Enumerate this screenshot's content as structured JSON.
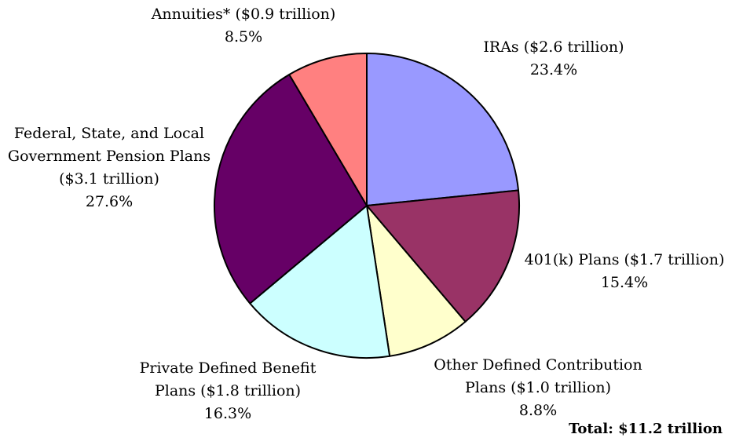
{
  "chart_data": {
    "type": "pie",
    "title": "",
    "total_label": "Total: $11.2 trillion",
    "start_angle_deg": 0,
    "slice_stroke": "#000000",
    "slices": [
      {
        "label": "IRAs ($2.6 trillion)",
        "percent_text": "23.4%",
        "value": 23.4,
        "color": "#9999ff",
        "lines": [
          "IRAs ($2.6 trillion)",
          "23.4%"
        ]
      },
      {
        "label": "401(k) Plans ($1.7 trillion)",
        "percent_text": "15.4%",
        "value": 15.4,
        "color": "#993366",
        "lines": [
          "401(k) Plans ($1.7 trillion)",
          "15.4%"
        ]
      },
      {
        "label": "Other Defined Contribution Plans ($1.0 trillion)",
        "percent_text": "8.8%",
        "value": 8.8,
        "color": "#ffffcc",
        "lines": [
          "Other Defined Contribution",
          "Plans ($1.0 trillion)",
          "8.8%"
        ]
      },
      {
        "label": "Private Defined Benefit Plans ($1.8 trillion)",
        "percent_text": "16.3%",
        "value": 16.3,
        "color": "#ccffff",
        "lines": [
          "Private Defined Benefit",
          "Plans ($1.8 trillion)",
          "16.3%"
        ]
      },
      {
        "label": "Federal, State, and Local Government Pension Plans ($3.1 trillion)",
        "percent_text": "27.6%",
        "value": 27.6,
        "color": "#660066",
        "lines": [
          "Federal, State, and Local",
          "Government Pension Plans",
          "($3.1 trillion)",
          "27.6%"
        ]
      },
      {
        "label": "Annuities* ($0.9 trillion)",
        "percent_text": "8.5%",
        "value": 8.5,
        "color": "#ff8080",
        "lines": [
          "Annuities* ($0.9 trillion)",
          "8.5%"
        ]
      }
    ]
  }
}
